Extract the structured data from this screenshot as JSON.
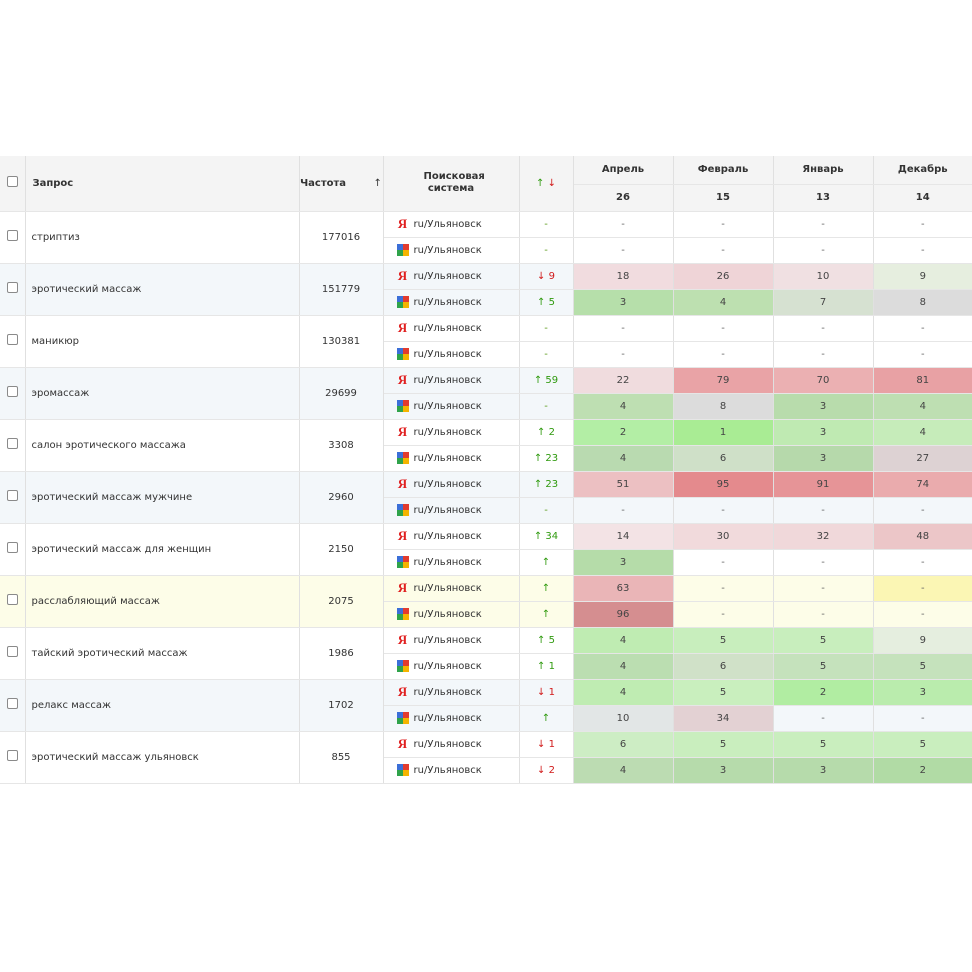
{
  "header": {
    "query": "Запрос",
    "frequency": "Частота",
    "sort_arrow": "↑",
    "engine": "Поисковая система",
    "change_up": "↑",
    "change_down": "↓",
    "months": [
      {
        "name": "Апрель",
        "value": "26"
      },
      {
        "name": "Февраль",
        "value": "15"
      },
      {
        "name": "Январь",
        "value": "13"
      },
      {
        "name": "Декабрь",
        "value": "14"
      }
    ]
  },
  "engines": {
    "yandex": "ru/Ульяновск",
    "google": "ru/Ульяновск"
  },
  "rows": [
    {
      "query": "стриптиз",
      "freq": "177016",
      "band": "A",
      "y": {
        "chg": "-",
        "dir": "none",
        "pos": [
          [
            "-",
            ""
          ],
          [
            "-",
            ""
          ],
          [
            "-",
            ""
          ],
          [
            "-",
            ""
          ]
        ]
      },
      "g": {
        "chg": "-",
        "dir": "none",
        "pos": [
          [
            "-",
            ""
          ],
          [
            "-",
            ""
          ],
          [
            "-",
            ""
          ],
          [
            "-",
            ""
          ]
        ]
      }
    },
    {
      "query": "эротический массаж",
      "freq": "151779",
      "band": "B",
      "y": {
        "chg": "↓ 9",
        "dir": "down",
        "pos": [
          [
            "18",
            "#f1dcdf"
          ],
          [
            "26",
            "#efd4d7"
          ],
          [
            "10",
            "#f0e0e2"
          ],
          [
            "9",
            "#e6eedf"
          ]
        ]
      },
      "g": {
        "chg": "↑ 5",
        "dir": "up",
        "pos": [
          [
            "3",
            "#b6dfaa"
          ],
          [
            "4",
            "#bde0b0"
          ],
          [
            "7",
            "#d6e1d1"
          ],
          [
            "8",
            "#dcdcdc"
          ]
        ]
      }
    },
    {
      "query": "маникюр",
      "freq": "130381",
      "band": "A",
      "y": {
        "chg": "-",
        "dir": "none",
        "pos": [
          [
            "-",
            ""
          ],
          [
            "-",
            ""
          ],
          [
            "-",
            ""
          ],
          [
            "-",
            ""
          ]
        ]
      },
      "g": {
        "chg": "-",
        "dir": "none",
        "pos": [
          [
            "-",
            ""
          ],
          [
            "-",
            ""
          ],
          [
            "-",
            ""
          ],
          [
            "-",
            ""
          ]
        ]
      }
    },
    {
      "query": "эромассаж",
      "freq": "29699",
      "band": "B",
      "y": {
        "chg": "↑ 59",
        "dir": "up",
        "pos": [
          [
            "22",
            "#f0dcde"
          ],
          [
            "79",
            "#e9a3a6"
          ],
          [
            "70",
            "#ebb0b2"
          ],
          [
            "81",
            "#e8a1a4"
          ]
        ]
      },
      "g": {
        "chg": "-",
        "dir": "none",
        "pos": [
          [
            "4",
            "#bedfb2"
          ],
          [
            "8",
            "#dcdcdc"
          ],
          [
            "3",
            "#b8dcac"
          ],
          [
            "4",
            "#bedfb2"
          ]
        ]
      }
    },
    {
      "query": "салон эротического массажа",
      "freq": "3308",
      "band": "A",
      "y": {
        "chg": "↑ 2",
        "dir": "up",
        "pos": [
          [
            "2",
            "#b3eea5"
          ],
          [
            "1",
            "#a9ec94"
          ],
          [
            "3",
            "#bfeab2"
          ],
          [
            "4",
            "#c6ecba"
          ]
        ]
      },
      "g": {
        "chg": "↑ 23",
        "dir": "up",
        "pos": [
          [
            "4",
            "#b9dab0"
          ],
          [
            "6",
            "#cfe0c8"
          ],
          [
            "3",
            "#b6d9ab"
          ],
          [
            "27",
            "#ddd2d3"
          ]
        ]
      }
    },
    {
      "query": "эротический массаж мужчине",
      "freq": "2960",
      "band": "B",
      "y": {
        "chg": "↑ 23",
        "dir": "up",
        "pos": [
          [
            "51",
            "#ecc0c2"
          ],
          [
            "95",
            "#e48a8d"
          ],
          [
            "91",
            "#e69497"
          ],
          [
            "74",
            "#eaabad"
          ]
        ]
      },
      "g": {
        "chg": "-",
        "dir": "none",
        "pos": [
          [
            "-",
            ""
          ],
          [
            "-",
            ""
          ],
          [
            "-",
            ""
          ],
          [
            "-",
            ""
          ]
        ]
      }
    },
    {
      "query": "эротический массаж для женщин",
      "freq": "2150",
      "band": "A",
      "y": {
        "chg": "↑ 34",
        "dir": "up",
        "pos": [
          [
            "14",
            "#f3e3e5"
          ],
          [
            "30",
            "#f1dadc"
          ],
          [
            "32",
            "#f0d8da"
          ],
          [
            "48",
            "#ecc6c8"
          ]
        ]
      },
      "g": {
        "chg": "↑",
        "dir": "up",
        "pos": [
          [
            "3",
            "#b5dca9"
          ],
          [
            "-",
            ""
          ],
          [
            "-",
            ""
          ],
          [
            "-",
            ""
          ]
        ]
      }
    },
    {
      "query": "расслабляющий массаж",
      "freq": "2075",
      "band": "Y",
      "y": {
        "chg": "↑",
        "dir": "up",
        "pos": [
          [
            "63",
            "#eab5b7"
          ],
          [
            "-",
            ""
          ],
          [
            "-",
            ""
          ],
          [
            "-",
            "#fbf6b4"
          ]
        ]
      },
      "g": {
        "chg": "↑",
        "dir": "up",
        "pos": [
          [
            "96",
            "#d58e90"
          ],
          [
            "-",
            ""
          ],
          [
            "-",
            ""
          ],
          [
            "-",
            ""
          ]
        ]
      }
    },
    {
      "query": "тайский эротический массаж",
      "freq": "1986",
      "band": "A",
      "y": {
        "chg": "↑ 5",
        "dir": "up",
        "pos": [
          [
            "4",
            "#bfecb2"
          ],
          [
            "5",
            "#c8eebd"
          ],
          [
            "5",
            "#c8eebd"
          ],
          [
            "9",
            "#e5eedf"
          ]
        ]
      },
      "g": {
        "chg": "↑ 1",
        "dir": "up",
        "pos": [
          [
            "4",
            "#bbdeb1"
          ],
          [
            "6",
            "#d0e1c8"
          ],
          [
            "5",
            "#c5e2bc"
          ],
          [
            "5",
            "#c5e2bc"
          ]
        ]
      }
    },
    {
      "query": "релакс массаж",
      "freq": "1702",
      "band": "B",
      "y": {
        "chg": "↓ 1",
        "dir": "down",
        "pos": [
          [
            "4",
            "#bfecb2"
          ],
          [
            "5",
            "#c9efbe"
          ],
          [
            "2",
            "#b1eda2"
          ],
          [
            "3",
            "#baecad"
          ]
        ]
      },
      "g": {
        "chg": "↑",
        "dir": "up",
        "pos": [
          [
            "10",
            "#e2e6e6"
          ],
          [
            "34",
            "#e3d1d3"
          ],
          [
            "-",
            ""
          ],
          [
            "-",
            ""
          ]
        ]
      }
    },
    {
      "query": "эротический массаж ульяновск",
      "freq": "855",
      "band": "A",
      "y": {
        "chg": "↓ 1",
        "dir": "down",
        "pos": [
          [
            "6",
            "#cdedc4"
          ],
          [
            "5",
            "#c9eebe"
          ],
          [
            "5",
            "#c9eebe"
          ],
          [
            "5",
            "#c9eebe"
          ]
        ]
      },
      "g": {
        "chg": "↓ 2",
        "dir": "down",
        "pos": [
          [
            "4",
            "#bcdcb2"
          ],
          [
            "3",
            "#b6dbab"
          ],
          [
            "3",
            "#b6dbab"
          ],
          [
            "2",
            "#b1dba5"
          ]
        ]
      }
    }
  ]
}
